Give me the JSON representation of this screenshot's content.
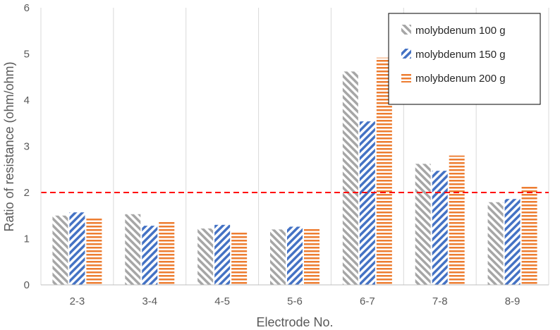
{
  "chart_data": {
    "type": "bar",
    "categories": [
      "2-3",
      "3-4",
      "4-5",
      "5-6",
      "6-7",
      "7-8",
      "8-9"
    ],
    "series": [
      {
        "name": "molybdenum 100 g",
        "values": [
          1.5,
          1.53,
          1.22,
          1.2,
          4.62,
          2.62,
          1.79
        ],
        "color": "#a6a6a6",
        "pattern": "diagonal-up"
      },
      {
        "name": "molybdenum 150 g",
        "values": [
          1.57,
          1.28,
          1.3,
          1.26,
          3.54,
          2.47,
          1.86
        ],
        "color": "#4472c4",
        "pattern": "diagonal-down"
      },
      {
        "name": "molybdenum 200 g",
        "values": [
          1.47,
          1.39,
          1.15,
          1.23,
          4.92,
          2.8,
          2.13
        ],
        "color": "#ed7d31",
        "pattern": "horizontal"
      }
    ],
    "xlabel": "Electrode No.",
    "ylabel": "Ratio of resistance (ohm/ohm)",
    "ylim": [
      0,
      6
    ],
    "yticks": [
      "0",
      "1",
      "2",
      "3",
      "4",
      "5",
      "6"
    ],
    "reference_line": {
      "y": 2,
      "color": "#ff0000",
      "style": "dashed"
    },
    "grid": "vertical",
    "legend_position": "top-right"
  }
}
